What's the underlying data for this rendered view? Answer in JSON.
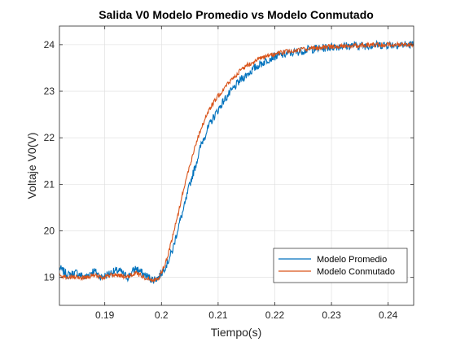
{
  "chart_data": {
    "type": "line",
    "title": "Salida V0 Modelo Promedio vs Modelo Conmutado",
    "xlabel": "Tiempo(s)",
    "ylabel": "Voltaje V0(V)",
    "xlim": [
      0.182,
      0.2445
    ],
    "ylim": [
      18.4,
      24.4
    ],
    "xticks": [
      0.19,
      0.2,
      0.21,
      0.22,
      0.23,
      0.24
    ],
    "xtick_labels": [
      "0.19",
      "0.2",
      "0.21",
      "0.22",
      "0.23",
      "0.24"
    ],
    "yticks": [
      19,
      20,
      21,
      22,
      23,
      24
    ],
    "ytick_labels": [
      "19",
      "20",
      "21",
      "22",
      "23",
      "24"
    ],
    "grid": true,
    "legend_position": "bottom-right",
    "series": [
      {
        "name": "Modelo Promedio",
        "color": "#0072BD",
        "x": [
          0.182,
          0.1835,
          0.185,
          0.1865,
          0.188,
          0.1895,
          0.191,
          0.1925,
          0.194,
          0.1955,
          0.197,
          0.1985,
          0.1995,
          0.2,
          0.201,
          0.202,
          0.203,
          0.204,
          0.205,
          0.206,
          0.207,
          0.208,
          0.209,
          0.21,
          0.211,
          0.212,
          0.213,
          0.214,
          0.215,
          0.216,
          0.217,
          0.218,
          0.219,
          0.22,
          0.222,
          0.224,
          0.226,
          0.228,
          0.23,
          0.232,
          0.234,
          0.236,
          0.238,
          0.24,
          0.242,
          0.2445
        ],
        "y": [
          19.2,
          19.05,
          19.1,
          19.0,
          19.15,
          19.0,
          19.1,
          19.15,
          19.0,
          19.2,
          19.05,
          18.95,
          19.0,
          19.1,
          19.3,
          19.6,
          20.1,
          20.5,
          21.0,
          21.4,
          21.85,
          22.15,
          22.4,
          22.6,
          22.8,
          22.95,
          23.1,
          23.25,
          23.35,
          23.45,
          23.55,
          23.62,
          23.7,
          23.75,
          23.8,
          23.85,
          23.9,
          23.92,
          23.95,
          23.97,
          23.98,
          23.98,
          23.99,
          24.0,
          24.0,
          24.0
        ]
      },
      {
        "name": "Modelo Conmutado",
        "color": "#D95319",
        "x": [
          0.182,
          0.1835,
          0.185,
          0.1865,
          0.188,
          0.1895,
          0.191,
          0.1925,
          0.194,
          0.1955,
          0.197,
          0.1985,
          0.1995,
          0.2,
          0.201,
          0.202,
          0.203,
          0.204,
          0.205,
          0.206,
          0.207,
          0.208,
          0.209,
          0.21,
          0.211,
          0.212,
          0.213,
          0.214,
          0.215,
          0.216,
          0.217,
          0.218,
          0.219,
          0.22,
          0.222,
          0.224,
          0.226,
          0.228,
          0.23,
          0.232,
          0.234,
          0.236,
          0.238,
          0.24,
          0.242,
          0.2445
        ],
        "y": [
          19.05,
          19.0,
          19.0,
          19.0,
          19.05,
          19.0,
          19.05,
          19.05,
          19.0,
          19.1,
          19.0,
          18.95,
          19.0,
          19.1,
          19.4,
          19.9,
          20.4,
          20.95,
          21.4,
          21.85,
          22.2,
          22.5,
          22.72,
          22.9,
          23.05,
          23.2,
          23.33,
          23.45,
          23.55,
          23.62,
          23.68,
          23.72,
          23.76,
          23.8,
          23.85,
          23.88,
          23.92,
          23.94,
          23.96,
          23.97,
          23.98,
          23.99,
          24.0,
          24.0,
          24.0,
          24.0
        ]
      }
    ]
  }
}
